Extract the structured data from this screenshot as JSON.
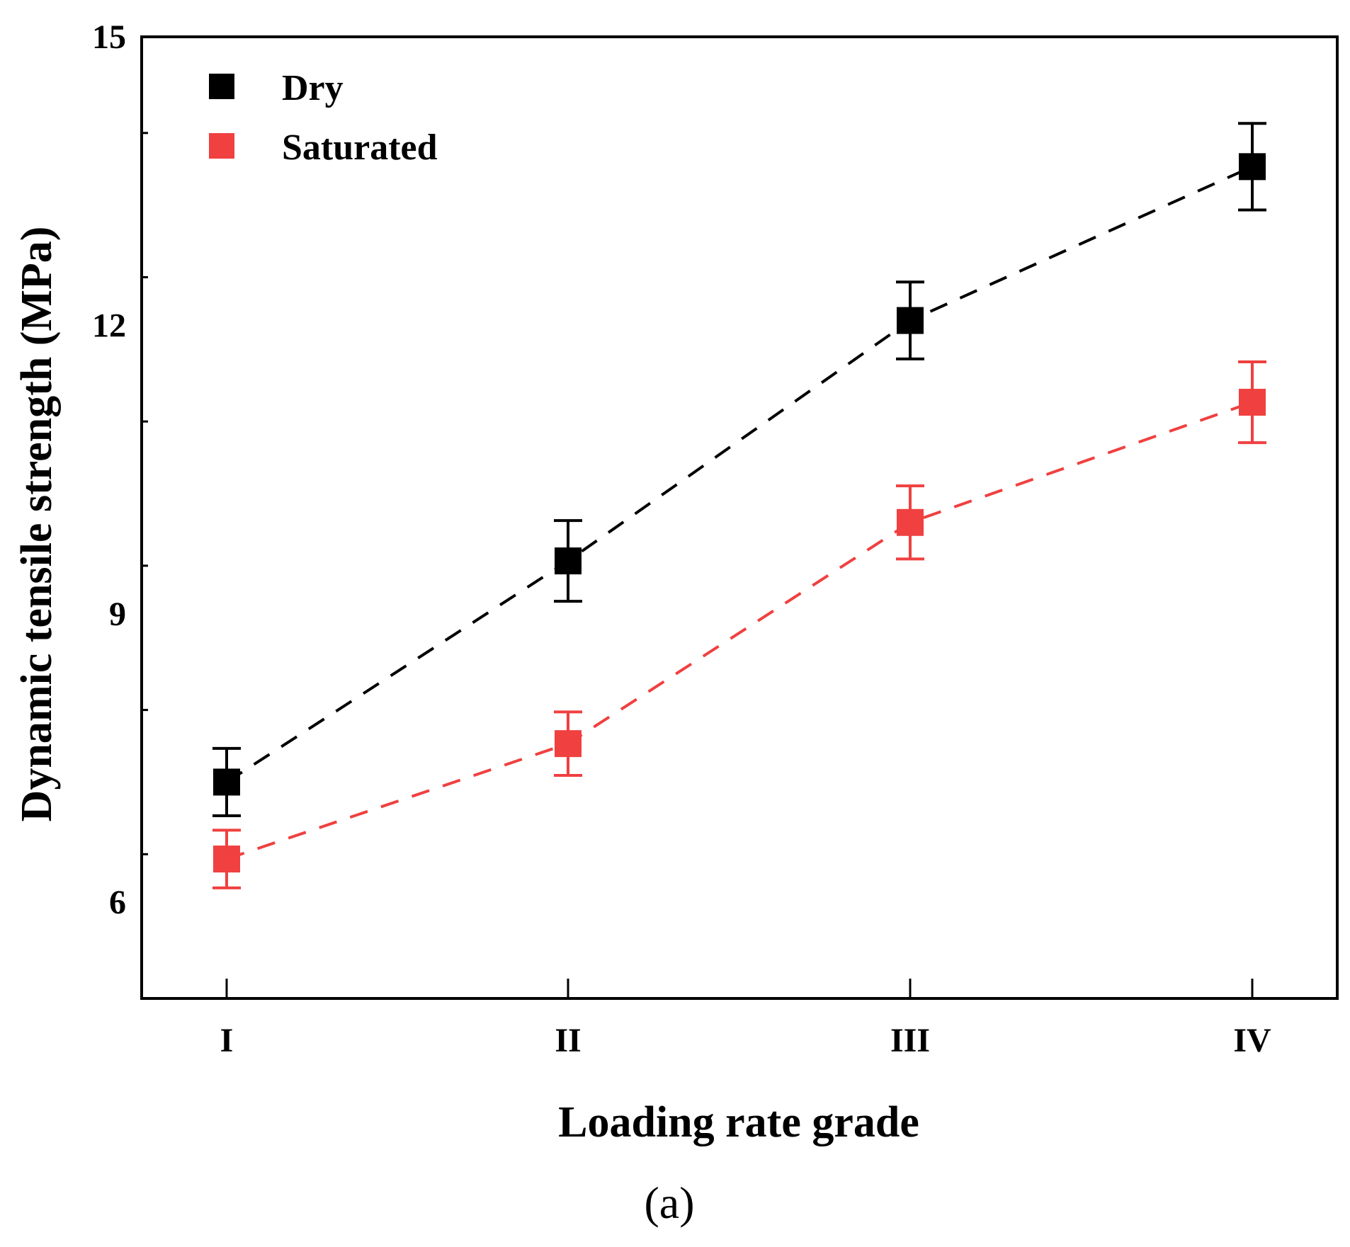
{
  "chart_data": {
    "type": "scatter",
    "title": "",
    "xlabel": "Loading rate grade",
    "ylabel": "Dynamic tensile strength (MPa)",
    "categories": [
      "I",
      "II",
      "III",
      "IV"
    ],
    "ylim": [
      5,
      15
    ],
    "yticks": [
      6,
      9,
      12,
      15
    ],
    "legend_position": "top-left",
    "series": [
      {
        "name": "Dry",
        "color": "#000000",
        "values": [
          7.25,
          9.55,
          12.05,
          13.65
        ],
        "errors": [
          0.35,
          0.42,
          0.4,
          0.45
        ],
        "trend_line": "dashed"
      },
      {
        "name": "Saturated",
        "color": "#f04040",
        "values": [
          6.45,
          7.65,
          9.95,
          11.2
        ],
        "errors": [
          0.3,
          0.33,
          0.38,
          0.42
        ],
        "trend_line": "dashed"
      }
    ]
  },
  "caption": "(a)"
}
